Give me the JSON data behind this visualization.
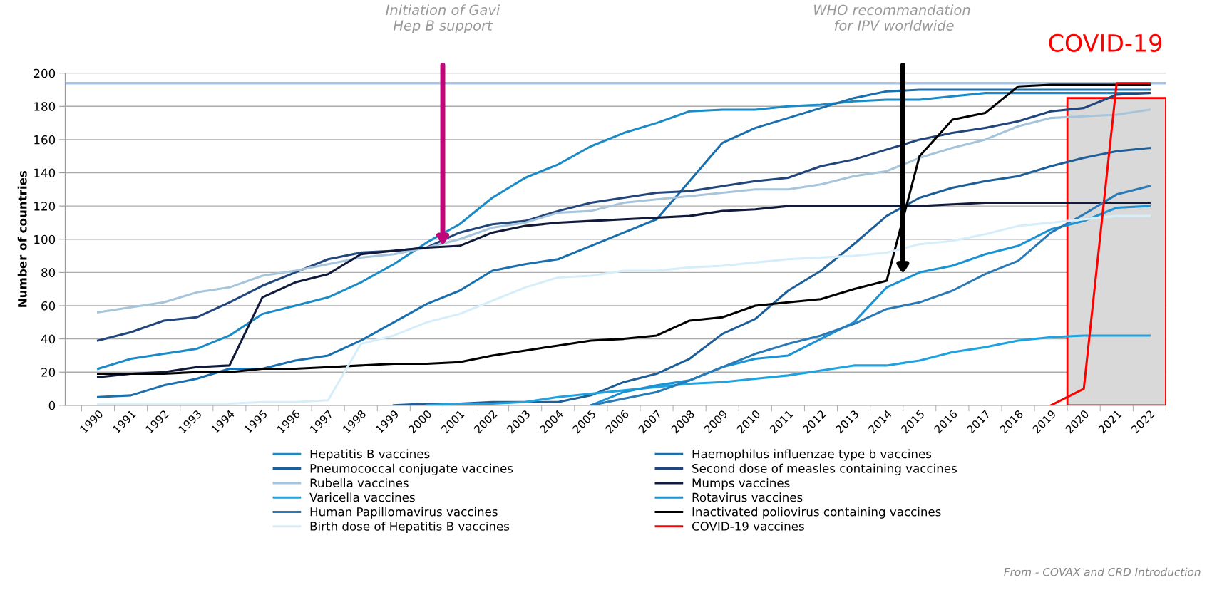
{
  "chart_data": {
    "type": "line",
    "ylabel": "Number of countries",
    "categories": [
      "1990",
      "1991",
      "1992",
      "1993",
      "1994",
      "1995",
      "1996",
      "1997",
      "1998",
      "1999",
      "2000",
      "2001",
      "2002",
      "2003",
      "2004",
      "2005",
      "2006",
      "2007",
      "2008",
      "2009",
      "2010",
      "2011",
      "2012",
      "2013",
      "2014",
      "2015",
      "2016",
      "2017",
      "2018",
      "2019",
      "2020",
      "2021",
      "2022"
    ],
    "ylim": [
      0,
      200
    ],
    "yticks": [
      0,
      20,
      40,
      60,
      80,
      100,
      120,
      140,
      160,
      180,
      200
    ],
    "grid": "y",
    "legend": "bottom",
    "marker": "none",
    "line_style": "solid",
    "series": [
      {
        "name": "Hepatitis B vaccines",
        "color": "#1b8bc8",
        "values": [
          22,
          28,
          31,
          34,
          42,
          55,
          60,
          65,
          74,
          85,
          98,
          109,
          125,
          137,
          145,
          156,
          164,
          170,
          177,
          178,
          178,
          180,
          181,
          183,
          184,
          184,
          186,
          188,
          188,
          188,
          188,
          188,
          188
        ]
      },
      {
        "name": "Haemophilus influenzae type b vaccines",
        "color": "#1a6fae",
        "values": [
          5,
          6,
          12,
          16,
          22,
          22,
          27,
          30,
          39,
          50,
          61,
          69,
          81,
          85,
          88,
          96,
          104,
          112,
          135,
          158,
          167,
          173,
          179,
          185,
          189,
          190,
          190,
          190,
          190,
          190,
          190,
          190,
          190
        ]
      },
      {
        "name": "Pneumococcal conjugate vaccines",
        "color": "#1f5f99",
        "values": [
          null,
          null,
          null,
          null,
          null,
          null,
          null,
          null,
          null,
          0,
          1,
          1,
          2,
          2,
          2,
          6,
          14,
          19,
          28,
          43,
          52,
          69,
          81,
          97,
          114,
          125,
          131,
          135,
          138,
          144,
          149,
          153,
          155
        ]
      },
      {
        "name": "Second dose of measles containing vaccines",
        "color": "#22457c",
        "values": [
          39,
          44,
          51,
          53,
          62,
          72,
          80,
          88,
          92,
          93,
          95,
          104,
          109,
          111,
          117,
          122,
          125,
          128,
          129,
          132,
          135,
          137,
          144,
          148,
          154,
          160,
          164,
          167,
          171,
          177,
          179,
          187,
          188
        ]
      },
      {
        "name": "Rubella vaccines",
        "color": "#a7c5da",
        "values": [
          56,
          59,
          62,
          68,
          71,
          78,
          81,
          85,
          89,
          91,
          95,
          100,
          107,
          110,
          116,
          117,
          122,
          124,
          126,
          128,
          130,
          130,
          133,
          138,
          141,
          149,
          155,
          160,
          168,
          173,
          174,
          175,
          178
        ]
      },
      {
        "name": "Mumps vaccines",
        "color": "#111a3a",
        "values": [
          17,
          19,
          20,
          23,
          24,
          65,
          74,
          79,
          91,
          93,
          95,
          96,
          104,
          108,
          110,
          111,
          112,
          113,
          114,
          117,
          118,
          120,
          120,
          120,
          120,
          120,
          121,
          122,
          122,
          122,
          122,
          122,
          122
        ]
      },
      {
        "name": "Varicella vaccines",
        "color": "#1ea3e0",
        "values": [
          null,
          null,
          null,
          null,
          null,
          null,
          null,
          null,
          null,
          null,
          0,
          1,
          1,
          2,
          5,
          7,
          9,
          11,
          13,
          14,
          16,
          18,
          21,
          24,
          24,
          27,
          32,
          35,
          39,
          41,
          42,
          42,
          42
        ]
      },
      {
        "name": "Rotavirus vaccines",
        "color": "#1b92d4",
        "values": [
          null,
          null,
          null,
          null,
          null,
          null,
          null,
          null,
          null,
          null,
          null,
          null,
          null,
          null,
          null,
          0,
          8,
          12,
          15,
          23,
          28,
          30,
          40,
          50,
          71,
          80,
          84,
          91,
          96,
          106,
          111,
          119,
          120
        ]
      },
      {
        "name": "Human Papillomavirus vaccines",
        "color": "#2a7ab8",
        "values": [
          null,
          null,
          null,
          null,
          null,
          null,
          null,
          null,
          null,
          null,
          null,
          null,
          null,
          null,
          null,
          0,
          4,
          8,
          15,
          23,
          31,
          37,
          42,
          49,
          58,
          62,
          69,
          79,
          87,
          104,
          115,
          127,
          132
        ]
      },
      {
        "name": "Inactivated poliovirus containing vaccines",
        "color": "#000000",
        "values": [
          19,
          19,
          19,
          20,
          20,
          22,
          22,
          23,
          24,
          25,
          25,
          26,
          30,
          33,
          36,
          39,
          40,
          42,
          51,
          53,
          60,
          62,
          64,
          70,
          75,
          150,
          172,
          176,
          192,
          193,
          193,
          193,
          193
        ]
      },
      {
        "name": "Birth dose of Hepatitis B vaccines",
        "color": "#d6eefa",
        "values": [
          1,
          1,
          1,
          1,
          1,
          2,
          2,
          3,
          37,
          42,
          50,
          55,
          63,
          71,
          77,
          78,
          81,
          81,
          83,
          84,
          86,
          88,
          89,
          90,
          92,
          97,
          99,
          103,
          108,
          110,
          112,
          114,
          114
        ]
      },
      {
        "name": "COVID-19 vaccines",
        "color": "#ff0000",
        "values": [
          null,
          null,
          null,
          null,
          null,
          null,
          null,
          null,
          null,
          null,
          null,
          null,
          null,
          null,
          null,
          null,
          null,
          null,
          null,
          null,
          null,
          null,
          null,
          null,
          null,
          null,
          null,
          null,
          null,
          0,
          10,
          194,
          194
        ]
      }
    ],
    "ref_lines": [
      {
        "axis": "y",
        "value": 194,
        "color": "#a9c6e8"
      }
    ],
    "bands": [
      {
        "axis": "x",
        "from": "2020",
        "to": "2022",
        "color": "#d9d9d9"
      }
    ],
    "annotations": [
      "Initiation of Gavi\nHep B support",
      "WHO recommandation\n for IPV worldwide",
      "COVID-19",
      "From - COVAX and CRD Introduction"
    ]
  }
}
